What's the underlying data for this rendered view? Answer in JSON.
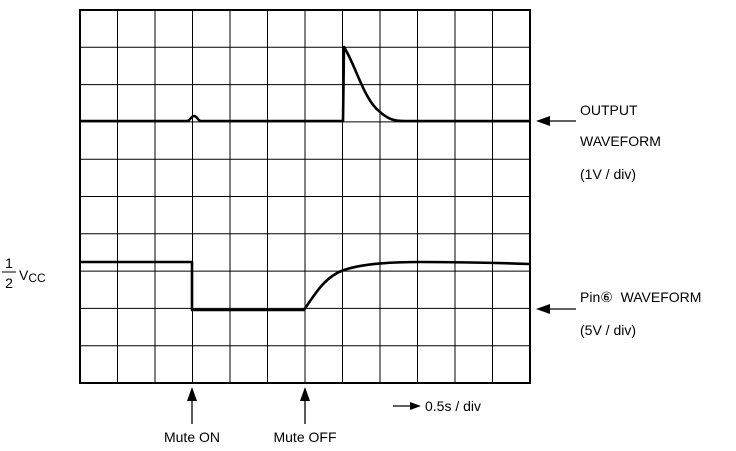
{
  "scope": {
    "grid": {
      "columns": 12,
      "rows": 10
    },
    "colors": {
      "grid": "#000000",
      "trace": "#000000",
      "background": "#ffffff"
    },
    "output_label": {
      "line1": "OUTPUT",
      "line2": "WAVEFORM",
      "line3": "(1V / div)"
    },
    "pin_label": {
      "line1": "Pin⑥  WAVEFORM",
      "line2": "(5V / div)"
    },
    "vcc_label": {
      "numerator": "1",
      "denominator": "2",
      "symbol": "V",
      "subscript": "CC"
    },
    "time_scale": "0.5s / div",
    "events": {
      "mute_on": "Mute ON",
      "mute_off": "Mute OFF"
    }
  }
}
